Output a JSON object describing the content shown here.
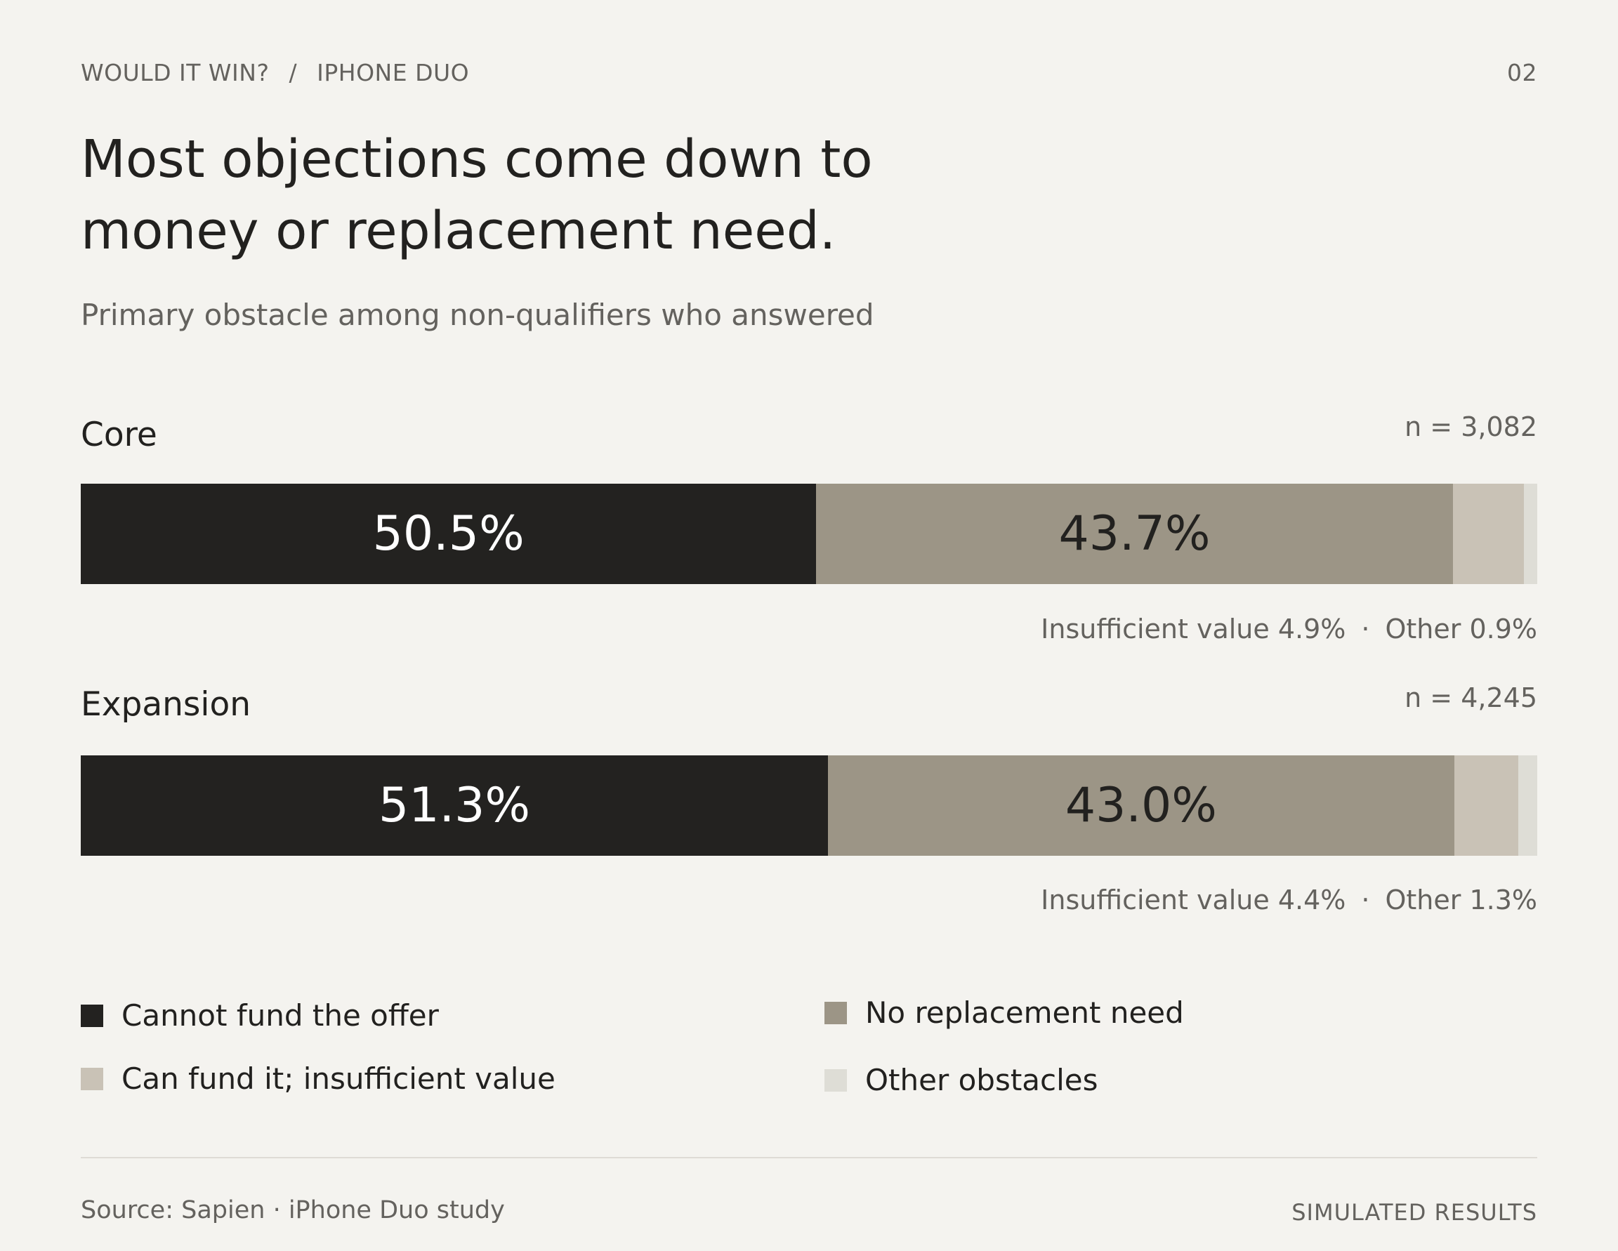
{
  "header": {
    "breadcrumb_section": "WOULD IT WIN?",
    "breadcrumb_separator": "/",
    "breadcrumb_page": "IPHONE DUO",
    "page_number": "02"
  },
  "title_line1": "Most objections come down to",
  "title_line2": "money or replacement need.",
  "subtitle": "Primary obstacle among non-qualifiers who answered",
  "colors": {
    "cannot_fund": "#232220",
    "no_replacement": "#9c9586",
    "insufficient_value": "#c9c2b6",
    "other": "#deddd6",
    "text_on_dark": "#ffffff",
    "text_on_mid": "#22211f"
  },
  "chart_data": {
    "type": "bar",
    "orientation": "horizontal-stacked-100",
    "categories": [
      "Core",
      "Expansion"
    ],
    "series": [
      {
        "name": "Cannot fund the offer",
        "values": [
          50.5,
          51.3
        ]
      },
      {
        "name": "No replacement need",
        "values": [
          43.7,
          43.0
        ]
      },
      {
        "name": "Can fund it; insufficient value",
        "values": [
          4.9,
          4.4
        ]
      },
      {
        "name": "Other obstacles",
        "values": [
          0.9,
          1.3
        ]
      }
    ],
    "unit": "%",
    "xlim": [
      0,
      100
    ]
  },
  "groups": [
    {
      "label": "Core",
      "n": "n = 3,082",
      "seg_labels": [
        "50.5%",
        "43.7%"
      ],
      "note_insufficient": "Insufficient value 4.9%",
      "note_sep": "·",
      "note_other": "Other 0.9%"
    },
    {
      "label": "Expansion",
      "n": "n = 4,245",
      "seg_labels": [
        "51.3%",
        "43.0%"
      ],
      "note_insufficient": "Insufficient value 4.4%",
      "note_sep": "·",
      "note_other": "Other 1.3%"
    }
  ],
  "legend": {
    "cannot_fund": "Cannot fund the offer",
    "no_replacement": "No replacement need",
    "insufficient_value": "Can fund it; insufficient value",
    "other": "Other obstacles"
  },
  "footer": {
    "source": "Source: Sapien · iPhone Duo study",
    "tag": "SIMULATED RESULTS"
  }
}
